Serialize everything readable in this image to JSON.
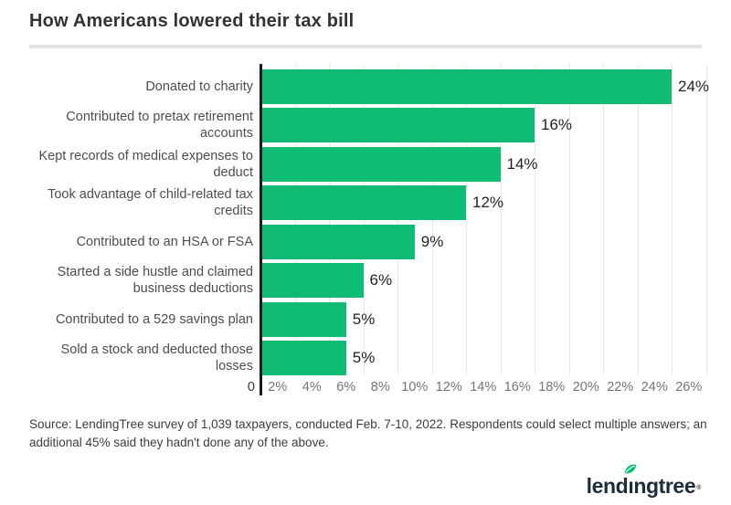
{
  "header": {
    "title": "How Americans lowered their tax bill"
  },
  "chart_data": {
    "type": "bar",
    "orientation": "horizontal",
    "title": "How Americans lowered their tax bill",
    "categories": [
      "Donated to charity",
      "Contributed to pretax retirement accounts",
      "Kept records of medical expenses to deduct",
      "Took advantage of child-related tax credits",
      "Contributed to an HSA or FSA",
      "Started a side hustle and claimed business deductions",
      "Contributed to a 529 savings plan",
      "Sold a stock and deducted those losses"
    ],
    "values": [
      24,
      16,
      14,
      12,
      9,
      6,
      5,
      5
    ],
    "value_labels": [
      "24%",
      "16%",
      "14%",
      "12%",
      "9%",
      "6%",
      "5%",
      "5%"
    ],
    "x_ticks": [
      {
        "value": 0,
        "label": "0"
      },
      {
        "value": 2,
        "label": "2%"
      },
      {
        "value": 4,
        "label": "4%"
      },
      {
        "value": 6,
        "label": "6%"
      },
      {
        "value": 8,
        "label": "8%"
      },
      {
        "value": 10,
        "label": "10%"
      },
      {
        "value": 12,
        "label": "12%"
      },
      {
        "value": 14,
        "label": "14%"
      },
      {
        "value": 16,
        "label": "16%"
      },
      {
        "value": 18,
        "label": "18%"
      },
      {
        "value": 20,
        "label": "20%"
      },
      {
        "value": 22,
        "label": "22%"
      },
      {
        "value": 24,
        "label": "24%"
      },
      {
        "value": 26,
        "label": "26%"
      }
    ],
    "xlim": [
      0,
      26
    ],
    "grid": true,
    "legend": "none",
    "bar_color": "#10bc74",
    "axis_color": "#1a1a1a",
    "gridline_color": "#e8e8e8"
  },
  "footer": {
    "source": "Source: LendingTree survey of 1,039 taxpayers, conducted Feb. 7-10, 2022. Respondents could select multiple answers; an additional 45% said they hadn't done any of the above."
  },
  "logo": {
    "pre": "lend",
    "i_dotless": "ı",
    "post": "ngtree",
    "registered": "®",
    "leaf_color": "#00c06e",
    "text_color": "#1e2c3c"
  }
}
